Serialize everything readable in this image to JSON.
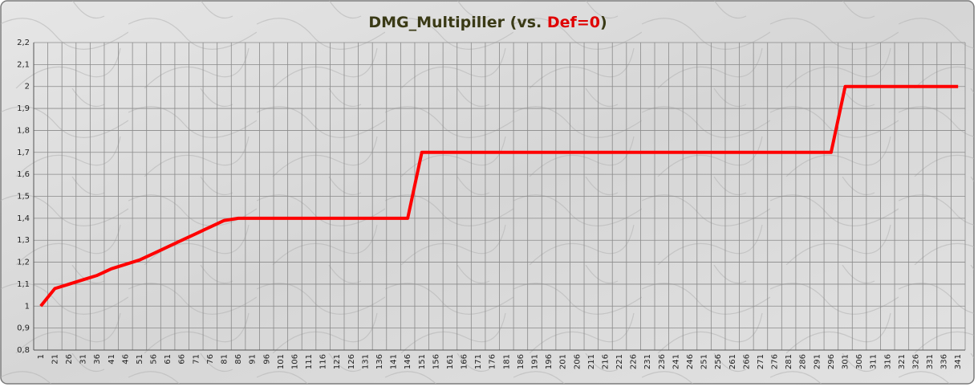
{
  "chart_data": {
    "type": "line",
    "title_parts": [
      {
        "text": "DMG_Multipiller (vs. ",
        "color": "#3a3a16"
      },
      {
        "text": "Def=0",
        "color": "#e00000"
      },
      {
        "text": ")",
        "color": "#3a3a16"
      }
    ],
    "categories": [
      1,
      21,
      26,
      31,
      36,
      41,
      46,
      51,
      56,
      61,
      66,
      71,
      76,
      81,
      86,
      91,
      96,
      101,
      106,
      111,
      116,
      121,
      126,
      131,
      136,
      141,
      146,
      151,
      156,
      161,
      166,
      171,
      176,
      181,
      186,
      191,
      196,
      201,
      206,
      211,
      216,
      221,
      226,
      231,
      236,
      241,
      246,
      251,
      256,
      261,
      266,
      271,
      276,
      281,
      286,
      291,
      296,
      301,
      306,
      311,
      316,
      321,
      326,
      331,
      336,
      341
    ],
    "series": [
      {
        "color": "#ff0000",
        "values": [
          1,
          1.08,
          1.1,
          1.12,
          1.14,
          1.17,
          1.19,
          1.21,
          1.24,
          1.27,
          1.3,
          1.33,
          1.36,
          1.39,
          1.4,
          1.4,
          1.4,
          1.4,
          1.4,
          1.4,
          1.4,
          1.4,
          1.4,
          1.4,
          1.4,
          1.4,
          1.4,
          1.7,
          1.7,
          1.7,
          1.7,
          1.7,
          1.7,
          1.7,
          1.7,
          1.7,
          1.7,
          1.7,
          1.7,
          1.7,
          1.7,
          1.7,
          1.7,
          1.7,
          1.7,
          1.7,
          1.7,
          1.7,
          1.7,
          1.7,
          1.7,
          1.7,
          1.7,
          1.7,
          1.7,
          1.7,
          1.7,
          2,
          2,
          2,
          2,
          2,
          2,
          2,
          2,
          2
        ]
      }
    ],
    "ylim": [
      0.8,
      2.2
    ],
    "yticks": [
      {
        "value": 0.8,
        "label": "0,8"
      },
      {
        "value": 0.9,
        "label": "0,9"
      },
      1,
      {
        "value": 1.1,
        "label": "1,1"
      },
      {
        "value": 1.2,
        "label": "1,2"
      },
      {
        "value": 1.3,
        "label": "1,3"
      },
      {
        "value": 1.4,
        "label": "1,4"
      },
      {
        "value": 1.5,
        "label": "1,5"
      },
      {
        "value": 1.6,
        "label": "1,6"
      },
      {
        "value": 1.7,
        "label": "1,7"
      },
      {
        "value": 1.8,
        "label": "1,8"
      },
      {
        "value": 1.9,
        "label": "1,9"
      },
      2,
      {
        "value": 2.1,
        "label": "2,1"
      },
      {
        "value": 2.2,
        "label": "2,2"
      }
    ],
    "grid": true
  }
}
